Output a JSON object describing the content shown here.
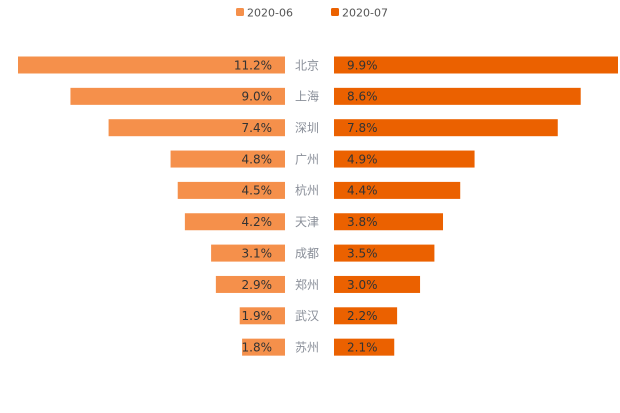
{
  "chart_data": {
    "type": "bar",
    "orientation": "horizontal-butterfly",
    "title": "",
    "categories": [
      "北京",
      "上海",
      "深圳",
      "广州",
      "杭州",
      "天津",
      "成都",
      "郑州",
      "武汉",
      "苏州"
    ],
    "series": [
      {
        "name": "2020-06",
        "color": "#f5904b",
        "direction": "left",
        "values": [
          11.2,
          9.0,
          7.4,
          4.8,
          4.5,
          4.2,
          3.1,
          2.9,
          1.9,
          1.8
        ],
        "labels": [
          "11.2%",
          "9.0%",
          "7.4%",
          "4.8%",
          "4.5%",
          "4.2%",
          "3.1%",
          "2.9%",
          "1.9%",
          "1.8%"
        ]
      },
      {
        "name": "2020-07",
        "color": "#eb6100",
        "direction": "right",
        "values": [
          9.9,
          8.6,
          7.8,
          4.9,
          4.4,
          3.8,
          3.5,
          3.0,
          2.2,
          2.1
        ],
        "labels": [
          "9.9%",
          "8.6%",
          "7.8%",
          "4.9%",
          "4.4%",
          "3.8%",
          "3.5%",
          "3.0%",
          "2.2%",
          "2.1%"
        ]
      }
    ],
    "xlim_left": [
      0,
      11.2
    ],
    "xlim_right": [
      0,
      9.9
    ],
    "value_unit": "%",
    "grid": false,
    "legend_position": "top-center"
  }
}
